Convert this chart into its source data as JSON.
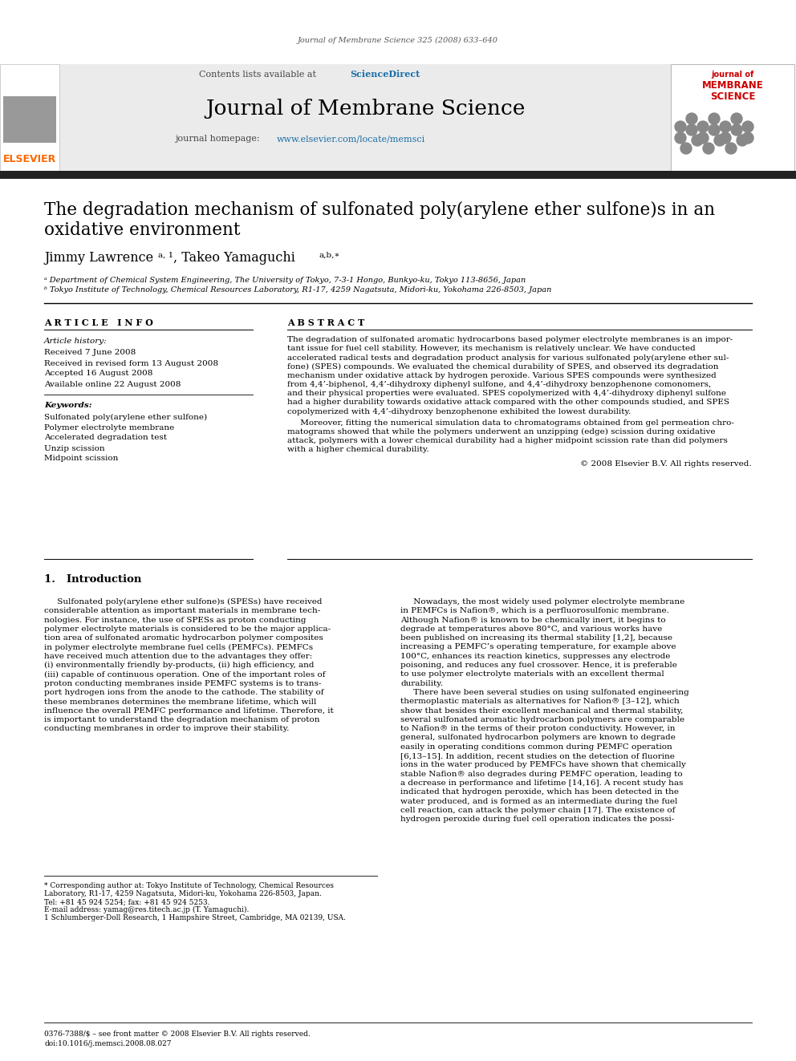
{
  "journal_ref": "Journal of Membrane Science 325 (2008) 633–640",
  "journal_name": "Journal of Membrane Science",
  "homepage_url": "www.elsevier.com/locate/memsci",
  "paper_title_line1": "The degradation mechanism of sulfonated poly(arylene ether sulfone)s in an",
  "paper_title_line2": "oxidative environment",
  "affil_a": "ᵃ Department of Chemical System Engineering, The University of Tokyo, 7-3-1 Hongo, Bunkyo-ku, Tokyo 113-8656, Japan",
  "affil_b": "ᵇ Tokyo Institute of Technology, Chemical Resources Laboratory, R1-17, 4259 Nagatsuta, Midori-ku, Yokohama 226-8503, Japan",
  "keyword1": "Sulfonated poly(arylene ether sulfone)",
  "keyword2": "Polymer electrolyte membrane",
  "keyword3": "Accelerated degradation test",
  "keyword4": "Unzip scission",
  "keyword5": "Midpoint scission",
  "abs1_lines": [
    "The degradation of sulfonated aromatic hydrocarbons based polymer electrolyte membranes is an impor-",
    "tant issue for fuel cell stability. However, its mechanism is relatively unclear. We have conducted",
    "accelerated radical tests and degradation product analysis for various sulfonated poly(arylene ether sul-",
    "fone) (SPES) compounds. We evaluated the chemical durability of SPES, and observed its degradation",
    "mechanism under oxidative attack by hydrogen peroxide. Various SPES compounds were synthesized",
    "from 4,4’-biphenol, 4,4’-dihydroxy diphenyl sulfone, and 4,4’-dihydroxy benzophenone comonomers,",
    "and their physical properties were evaluated. SPES copolymerized with 4,4’-dihydroxy diphenyl sulfone",
    "had a higher durability towards oxidative attack compared with the other compounds studied, and SPES",
    "copolymerized with 4,4’-dihydroxy benzophenone exhibited the lowest durability."
  ],
  "abs2_lines": [
    "     Moreover, fitting the numerical simulation data to chromatograms obtained from gel permeation chro-",
    "matograms showed that while the polymers underwent an unzipping (edge) scission during oxidative",
    "attack, polymers with a lower chemical durability had a higher midpoint scission rate than did polymers",
    "with a higher chemical durability."
  ],
  "left_intro_lines": [
    "     Sulfonated poly(arylene ether sulfone)s (SPESs) have received",
    "considerable attention as important materials in membrane tech-",
    "nologies. For instance, the use of SPESs as proton conducting",
    "polymer electrolyte materials is considered to be the major applica-",
    "tion area of sulfonated aromatic hydrocarbon polymer composites",
    "in polymer electrolyte membrane fuel cells (PEMFCs). PEMFCs",
    "have received much attention due to the advantages they offer:",
    "(i) environmentally friendly by-products, (ii) high efficiency, and",
    "(iii) capable of continuous operation. One of the important roles of",
    "proton conducting membranes inside PEMFC systems is to trans-",
    "port hydrogen ions from the anode to the cathode. The stability of",
    "these membranes determines the membrane lifetime, which will",
    "influence the overall PEMFC performance and lifetime. Therefore, it",
    "is important to understand the degradation mechanism of proton",
    "conducting membranes in order to improve their stability."
  ],
  "right_intro_lines": [
    "     Nowadays, the most widely used polymer electrolyte membrane",
    "in PEMFCs is Nafion®, which is a perfluorosulfonic membrane.",
    "Although Nafion® is known to be chemically inert, it begins to",
    "degrade at temperatures above 80°C, and various works have",
    "been published on increasing its thermal stability [1,2], because",
    "increasing a PEMFC’s operating temperature, for example above",
    "100°C, enhances its reaction kinetics, suppresses any electrode",
    "poisoning, and reduces any fuel crossover. Hence, it is preferable",
    "to use polymer electrolyte materials with an excellent thermal",
    "durability.",
    "     There have been several studies on using sulfonated engineering",
    "thermoplastic materials as alternatives for Nafion® [3–12], which",
    "show that besides their excellent mechanical and thermal stability,",
    "several sulfonated aromatic hydrocarbon polymers are comparable",
    "to Nafion® in the terms of their proton conductivity. However, in",
    "general, sulfonated hydrocarbon polymers are known to degrade",
    "easily in operating conditions common during PEMFC operation",
    "[6,13–15]. In addition, recent studies on the detection of fluorine",
    "ions in the water produced by PEMFCs have shown that chemically",
    "stable Nafion® also degrades during PEMFC operation, leading to",
    "a decrease in performance and lifetime [14,16]. A recent study has",
    "indicated that hydrogen peroxide, which has been detected in the",
    "water produced, and is formed as an intermediate during the fuel",
    "cell reaction, can attack the polymer chain [17]. The existence of",
    "hydrogen peroxide during fuel cell operation indicates the possi-"
  ],
  "footnote_lines": [
    "* Corresponding author at: Tokyo Institute of Technology, Chemical Resources",
    "Laboratory, R1-17, 4259 Nagatsuta, Midori-ku, Yokohama 226-8503, Japan.",
    "Tel: +81 45 924 5254; fax: +81 45 924 5253.",
    "E-mail address: yamag@res.titech.ac.jp (T. Yamaguchi).",
    "1 Schlumberger-Doll Research, 1 Hampshire Street, Cambridge, MA 02139, USA."
  ],
  "elsevier_color": "#FF6600",
  "sciencedirect_color": "#1A6EA8",
  "url_color": "#1A6EA8",
  "header_bg": "#EBEBEB",
  "dark_bar_color": "#222222"
}
